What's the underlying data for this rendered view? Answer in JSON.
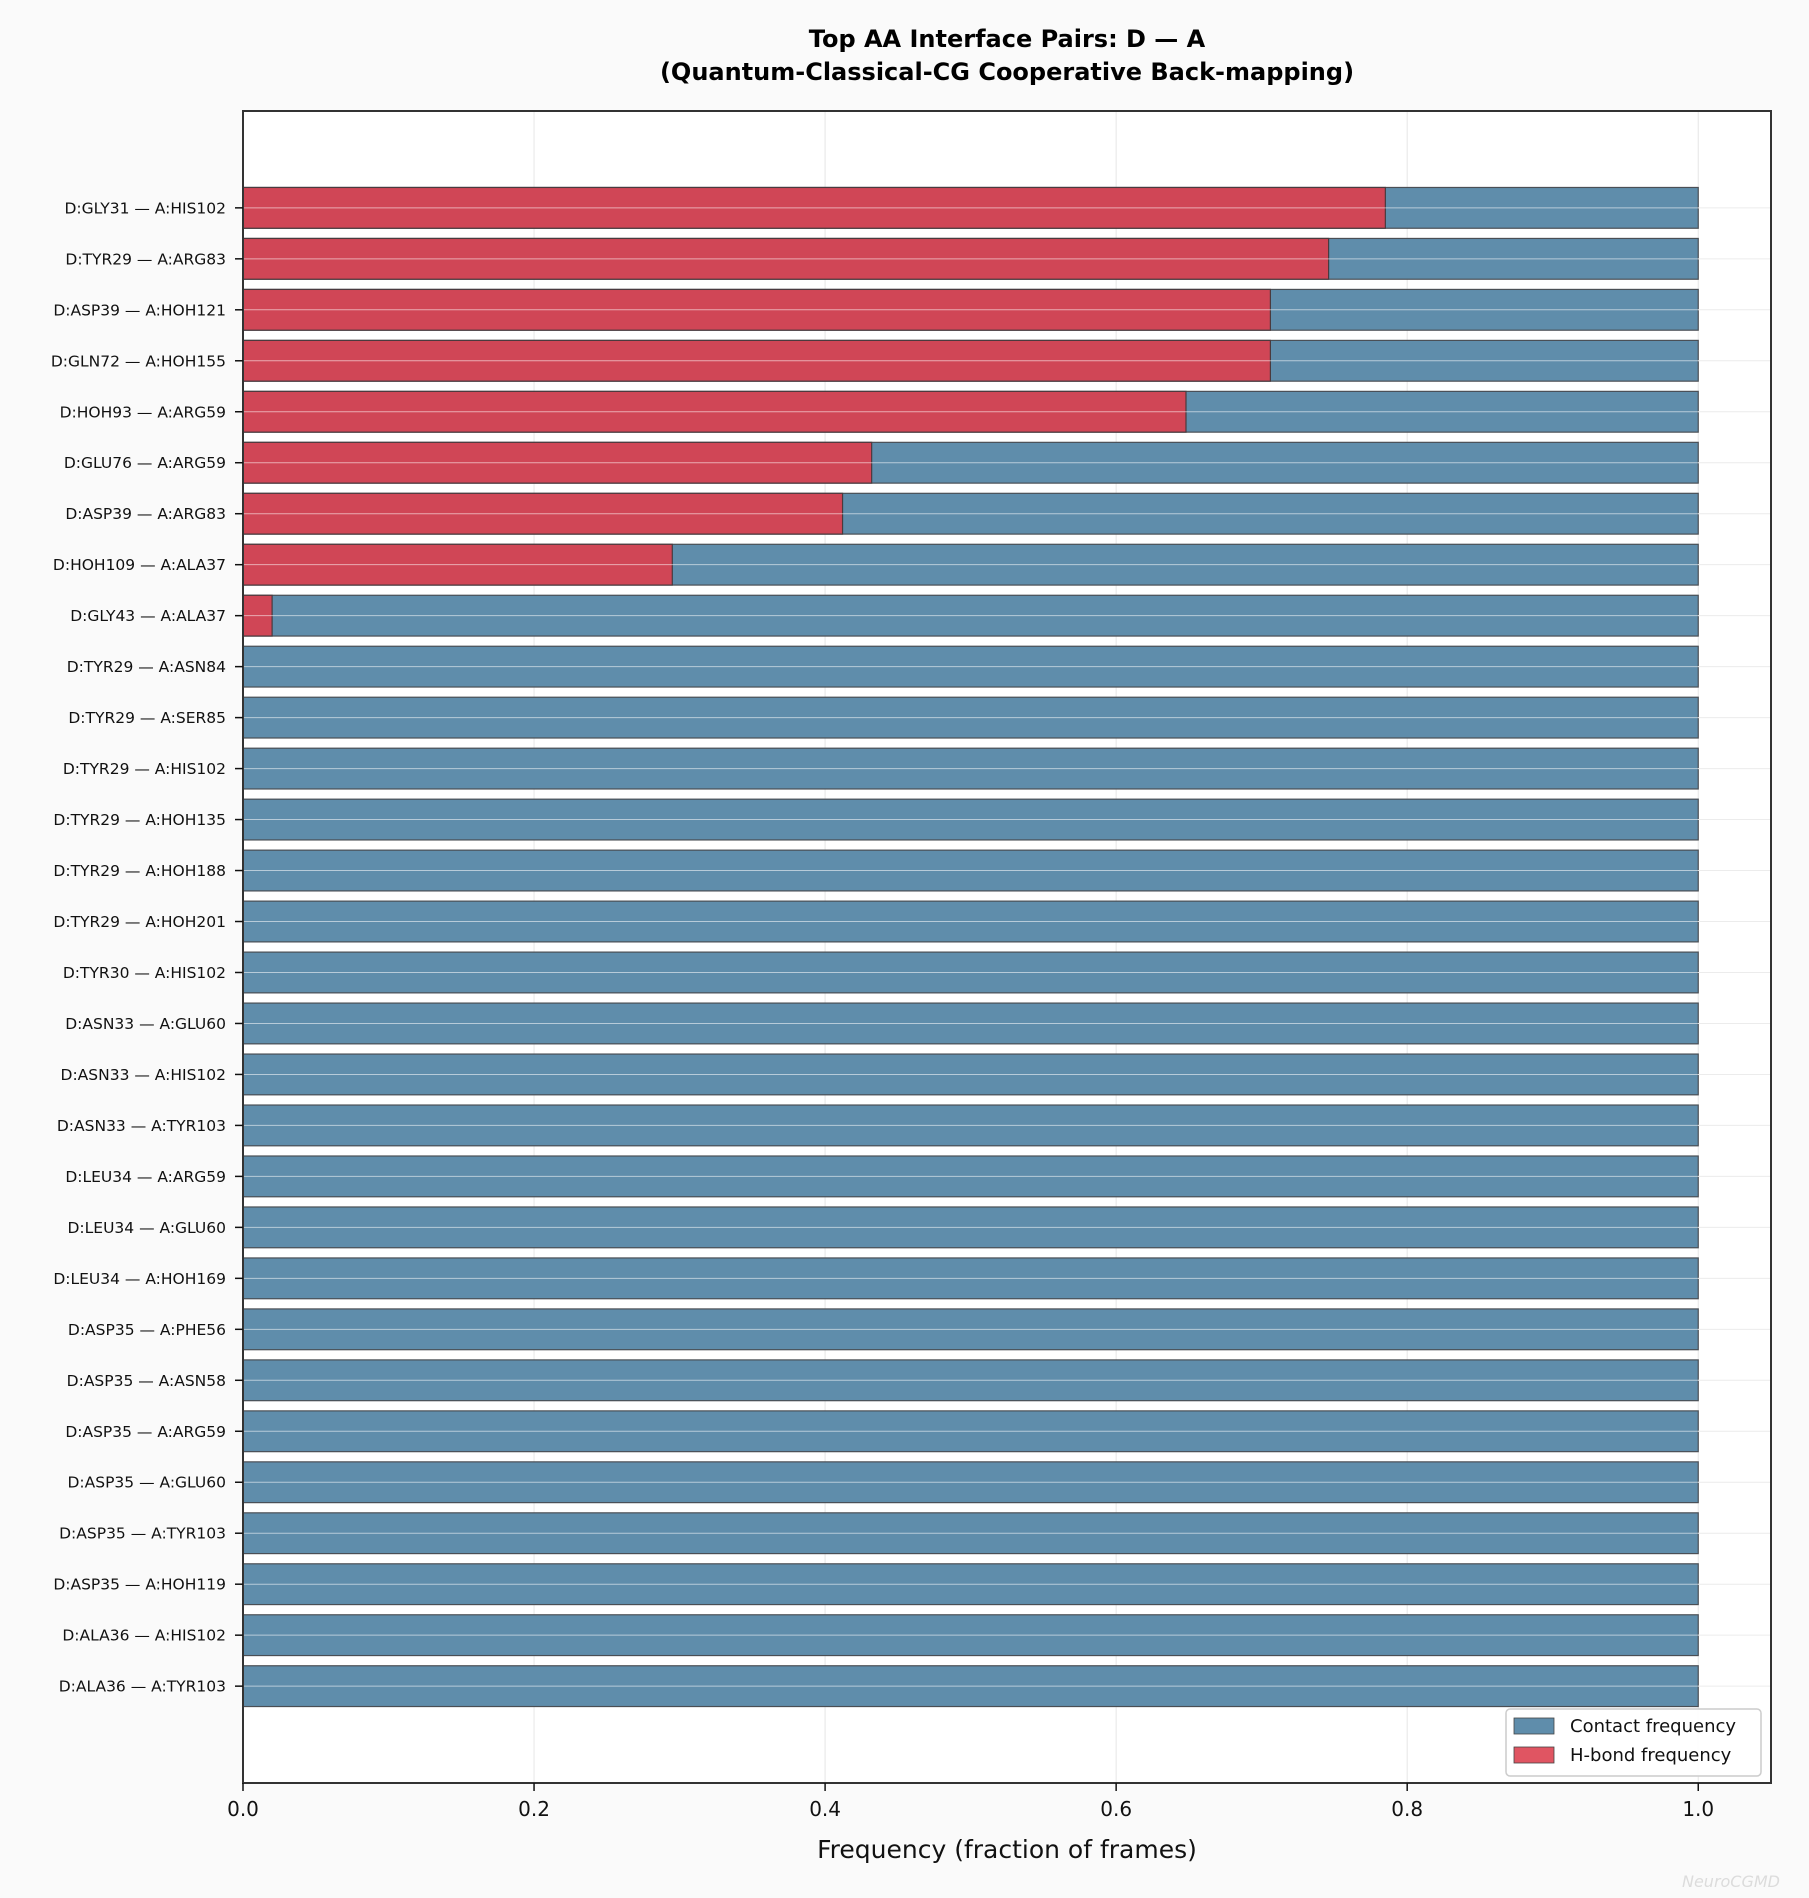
{
  "chart_data": {
    "type": "bar",
    "orientation": "horizontal",
    "title": "Top AA Interface Pairs: D — A",
    "subtitle": "(Quantum-Classical-CG Cooperative Back-mapping)",
    "xlabel": "Frequency (fraction of frames)",
    "ylabel": "",
    "xlim": [
      0,
      1.05
    ],
    "xticks": [
      "0.0",
      "0.2",
      "0.4",
      "0.6",
      "0.8",
      "1.0"
    ],
    "xtick_values": [
      0,
      0.2,
      0.4,
      0.6,
      0.8,
      1.0
    ],
    "grid": true,
    "legend_position": "bottom-right",
    "categories": [
      "D:GLY31 — A:HIS102",
      "D:TYR29 — A:ARG83",
      "D:ASP39 — A:HOH121",
      "D:GLN72 — A:HOH155",
      "D:HOH93 — A:ARG59",
      "D:GLU76 — A:ARG59",
      "D:ASP39 — A:ARG83",
      "D:HOH109 — A:ALA37",
      "D:GLY43 — A:ALA37",
      "D:TYR29 — A:ASN84",
      "D:TYR29 — A:SER85",
      "D:TYR29 — A:HIS102",
      "D:TYR29 — A:HOH135",
      "D:TYR29 — A:HOH188",
      "D:TYR29 — A:HOH201",
      "D:TYR30 — A:HIS102",
      "D:ASN33 — A:GLU60",
      "D:ASN33 — A:HIS102",
      "D:ASN33 — A:TYR103",
      "D:LEU34 — A:ARG59",
      "D:LEU34 — A:GLU60",
      "D:LEU34 — A:HOH169",
      "D:ASP35 — A:PHE56",
      "D:ASP35 — A:ASN58",
      "D:ASP35 — A:ARG59",
      "D:ASP35 — A:GLU60",
      "D:ASP35 — A:TYR103",
      "D:ASP35 — A:HOH119",
      "D:ALA36 — A:HIS102",
      "D:ALA36 — A:TYR103"
    ],
    "series": [
      {
        "name": "Contact frequency",
        "color": "#5f8dab",
        "values": [
          1,
          1,
          1,
          1,
          1,
          1,
          1,
          1,
          1,
          1,
          1,
          1,
          1,
          1,
          1,
          1,
          1,
          1,
          1,
          1,
          1,
          1,
          1,
          1,
          1,
          1,
          1,
          1,
          1,
          1
        ]
      },
      {
        "name": "H-bond frequency",
        "color": "#d04656",
        "values": [
          0.785,
          0.746,
          0.706,
          0.706,
          0.648,
          0.432,
          0.412,
          0.295,
          0.02,
          0,
          0,
          0,
          0,
          0,
          0,
          0,
          0,
          0,
          0,
          0,
          0,
          0,
          0,
          0,
          0,
          0,
          0,
          0,
          0,
          0
        ]
      }
    ],
    "legend": [
      "Contact frequency",
      "H-bond frequency"
    ],
    "watermark": "NeuroCGMD"
  }
}
